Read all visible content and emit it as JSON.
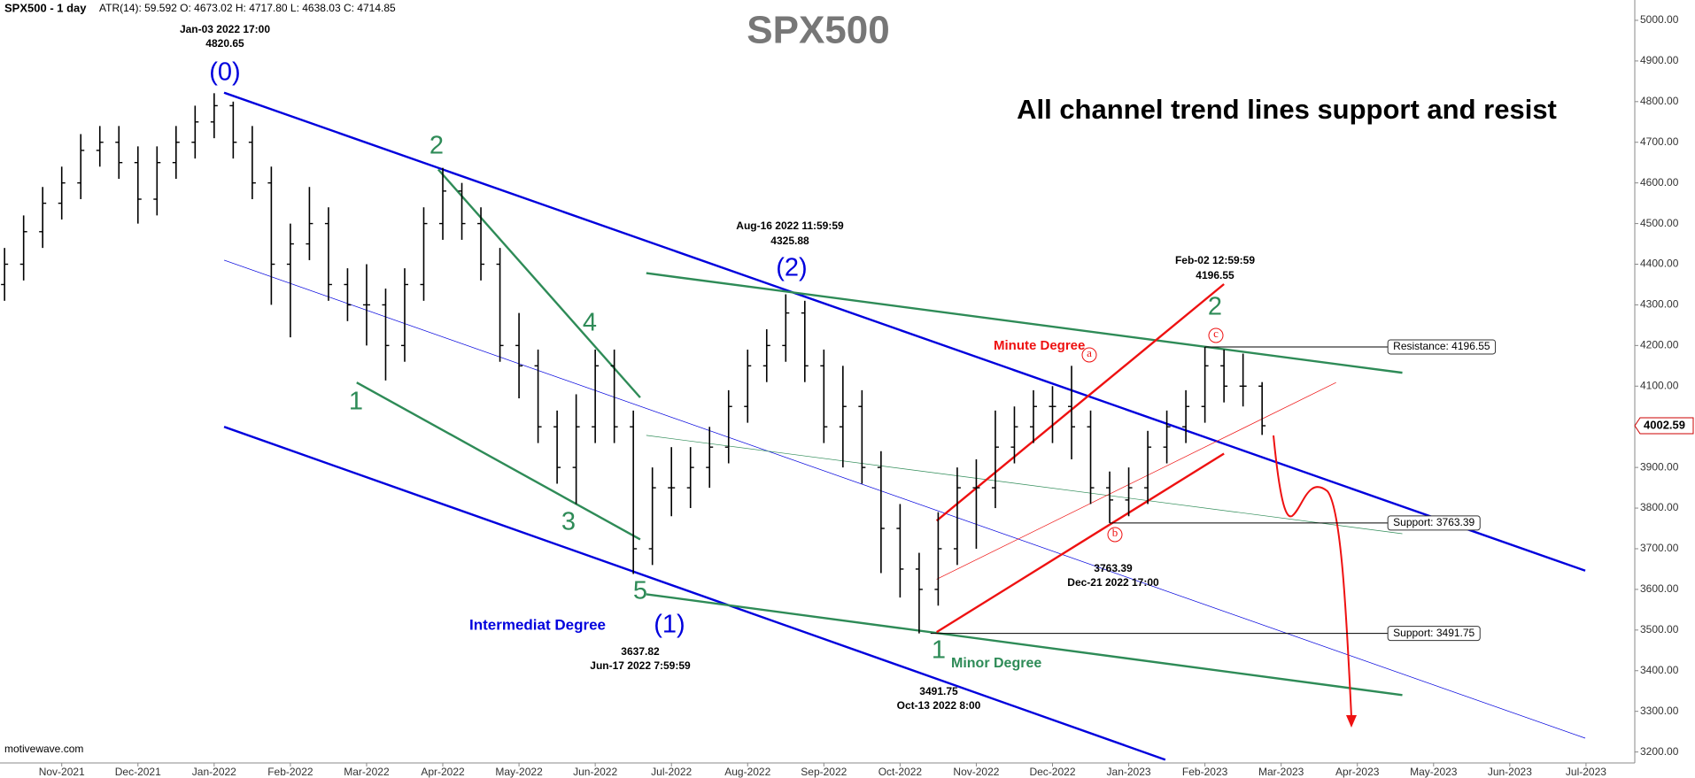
{
  "chart_data": {
    "type": "ohlc",
    "title": "SPX500",
    "subtitle": "All channel trend lines support and resist",
    "symbol": "SPX500 - 1 day",
    "stats": "ATR(14): 59.592  O: 4673.02  H: 4717.80  L: 4638.03  C: 4714.85",
    "source": "motivewave.com",
    "color": "#000000",
    "x": [
      -0.75,
      -0.5,
      -0.25,
      0,
      0.25,
      0.5,
      0.75,
      1,
      1.25,
      1.5,
      1.75,
      2,
      2.25,
      2.5,
      2.75,
      3,
      3.25,
      3.5,
      3.75,
      4,
      4.25,
      4.5,
      4.75,
      5,
      5.25,
      5.5,
      5.75,
      6,
      6.25,
      6.5,
      6.75,
      7,
      7.25,
      7.5,
      7.75,
      8,
      8.25,
      8.5,
      8.75,
      9,
      9.25,
      9.5,
      9.75,
      10,
      10.25,
      10.5,
      10.75,
      11,
      11.25,
      11.5,
      11.75,
      12,
      12.25,
      12.5,
      12.75,
      13,
      13.25,
      13.5,
      13.75,
      14,
      14.25,
      14.5,
      14.75,
      15,
      15.25,
      15.5,
      15.75
    ],
    "open": [
      4350,
      4400,
      4480,
      4550,
      4600,
      4680,
      4700,
      4650,
      4560,
      4650,
      4700,
      4750,
      4790,
      4700,
      4600,
      4400,
      4450,
      4500,
      4350,
      4300,
      4300,
      4200,
      4350,
      4500,
      4580,
      4500,
      4400,
      4200,
      4150,
      4000,
      3900,
      4000,
      4150,
      4000,
      3700,
      3850,
      3850,
      3900,
      3950,
      4050,
      4150,
      4200,
      4280,
      4150,
      4000,
      4050,
      3900,
      3750,
      3650,
      3600,
      3700,
      3850,
      3850,
      3950,
      4000,
      4050,
      4050,
      4000,
      3850,
      3820,
      3850,
      3950,
      4000,
      4050,
      4150,
      4100,
      4100
    ],
    "high": [
      4440,
      4520,
      4590,
      4640,
      4720,
      4740,
      4740,
      4690,
      4690,
      4740,
      4790,
      4820.65,
      4800,
      4740,
      4640,
      4500,
      4590,
      4540,
      4390,
      4400,
      4340,
      4390,
      4540,
      4637,
      4600,
      4540,
      4440,
      4280,
      4190,
      4040,
      4080,
      4190,
      4190,
      4040,
      3900,
      3950,
      3950,
      4000,
      4090,
      4190,
      4240,
      4325.88,
      4310,
      4190,
      4150,
      4090,
      3940,
      3810,
      3690,
      3790,
      3900,
      3920,
      4040,
      4050,
      4090,
      4100,
      4150,
      4040,
      3890,
      3900,
      3990,
      4040,
      4090,
      4196.55,
      4190,
      4180,
      4110
    ],
    "low": [
      4310,
      4360,
      4440,
      4510,
      4560,
      4640,
      4610,
      4500,
      4520,
      4610,
      4660,
      4710,
      4660,
      4560,
      4300,
      4220,
      4410,
      4310,
      4260,
      4200,
      4114,
      4160,
      4310,
      4460,
      4460,
      4360,
      4160,
      4070,
      3960,
      3860,
      3810,
      3960,
      3960,
      3637.82,
      3660,
      3780,
      3800,
      3850,
      3910,
      4010,
      4110,
      4160,
      4110,
      3960,
      3900,
      3860,
      3640,
      3580,
      3491.75,
      3560,
      3660,
      3700,
      3800,
      3910,
      3960,
      3960,
      3920,
      3810,
      3763.39,
      3780,
      3810,
      3910,
      3960,
      4010,
      4060,
      4050,
      3980
    ],
    "close": [
      4400,
      4480,
      4550,
      4600,
      4680,
      4700,
      4650,
      4560,
      4650,
      4700,
      4750,
      4790,
      4700,
      4600,
      4400,
      4450,
      4500,
      4350,
      4300,
      4300,
      4200,
      4350,
      4500,
      4580,
      4500,
      4400,
      4200,
      4150,
      4000,
      3900,
      4000,
      4150,
      4000,
      3700,
      3850,
      3850,
      3900,
      3950,
      4050,
      4150,
      4200,
      4280,
      4150,
      4000,
      4050,
      3900,
      3750,
      3650,
      3600,
      3700,
      3850,
      3850,
      3950,
      4000,
      4050,
      4050,
      4000,
      3850,
      3820,
      3850,
      3950,
      4000,
      4050,
      4150,
      4100,
      4100,
      4002.59
    ],
    "xlim": [
      -0.81,
      20.64
    ],
    "ylim": [
      3173,
      5050
    ],
    "xticks": [
      {
        "value": 0,
        "label": "Nov-2021"
      },
      {
        "value": 1,
        "label": "Dec-2021"
      },
      {
        "value": 2,
        "label": "Jan-2022"
      },
      {
        "value": 3,
        "label": "Feb-2022"
      },
      {
        "value": 4,
        "label": "Mar-2022"
      },
      {
        "value": 5,
        "label": "Apr-2022"
      },
      {
        "value": 6,
        "label": "May-2022"
      },
      {
        "value": 7,
        "label": "Jun-2022"
      },
      {
        "value": 8,
        "label": "Jul-2022"
      },
      {
        "value": 9,
        "label": "Aug-2022"
      },
      {
        "value": 10,
        "label": "Sep-2022"
      },
      {
        "value": 11,
        "label": "Oct-2022"
      },
      {
        "value": 12,
        "label": "Nov-2022"
      },
      {
        "value": 13,
        "label": "Dec-2022"
      },
      {
        "value": 14,
        "label": "Jan-2023"
      },
      {
        "value": 15,
        "label": "Feb-2023"
      },
      {
        "value": 16,
        "label": "Mar-2023"
      },
      {
        "value": 17,
        "label": "Apr-2023"
      },
      {
        "value": 18,
        "label": "May-2023"
      },
      {
        "value": 19,
        "label": "Jun-2023"
      },
      {
        "value": 20,
        "label": "Jul-2023"
      }
    ],
    "yticks": [
      {
        "value": 3200,
        "label": "3200.00"
      },
      {
        "value": 3300,
        "label": "3300.00"
      },
      {
        "value": 3400,
        "label": "3400.00"
      },
      {
        "value": 3500,
        "label": "3500.00"
      },
      {
        "value": 3600,
        "label": "3600.00"
      },
      {
        "value": 3700,
        "label": "3700.00"
      },
      {
        "value": 3800,
        "label": "3800.00"
      },
      {
        "value": 3900,
        "label": "3900.00"
      },
      {
        "value": 4000,
        "label": "4000.00"
      },
      {
        "value": 4100,
        "label": "4100.00"
      },
      {
        "value": 4200,
        "label": "4200.00"
      },
      {
        "value": 4300,
        "label": "4300.00"
      },
      {
        "value": 4400,
        "label": "4400.00"
      },
      {
        "value": 4500,
        "label": "4500.00"
      },
      {
        "value": 4600,
        "label": "4600.00"
      },
      {
        "value": 4700,
        "label": "4700.00"
      },
      {
        "value": 4800,
        "label": "4800.00"
      },
      {
        "value": 4900,
        "label": "4900.00"
      },
      {
        "value": 5000,
        "label": "5000.00"
      }
    ],
    "lines": [
      {
        "color": "#0000dd",
        "weight": "thick",
        "x": [
          2.13,
          19.99
        ],
        "y": [
          4822,
          3646
        ]
      },
      {
        "color": "#0000dd",
        "weight": "thick",
        "x": [
          2.13,
          14.48
        ],
        "y": [
          4000,
          3181
        ]
      },
      {
        "color": "#0000dd",
        "weight": "thin",
        "x": [
          2.13,
          19.99
        ],
        "y": [
          4410,
          3234
        ]
      },
      {
        "color": "#2e8b57",
        "weight": "thick",
        "x": [
          7.67,
          17.59
        ],
        "y": [
          4378,
          4133
        ]
      },
      {
        "color": "#2e8b57",
        "weight": "thick",
        "x": [
          7.67,
          17.59
        ],
        "y": [
          3588,
          3340
        ]
      },
      {
        "color": "#2e8b57",
        "weight": "thin",
        "x": [
          7.67,
          17.59
        ],
        "y": [
          3979,
          3737
        ]
      },
      {
        "color": "#2e8b57",
        "weight": "thick",
        "x": [
          3.87,
          7.59
        ],
        "y": [
          4109,
          3723
        ]
      },
      {
        "color": "#2e8b57",
        "weight": "thick",
        "x": [
          4.94,
          7.59
        ],
        "y": [
          4633,
          4072
        ]
      },
      {
        "color": "#ee1111",
        "weight": "thick",
        "x": [
          11.48,
          15.25
        ],
        "y": [
          3495,
          3934
        ]
      },
      {
        "color": "#ee1111",
        "weight": "thick",
        "x": [
          11.48,
          15.25
        ],
        "y": [
          3769,
          4351
        ]
      },
      {
        "color": "#ee1111",
        "weight": "thin",
        "x": [
          11.48,
          16.72
        ],
        "y": [
          3625,
          4109
        ]
      }
    ],
    "levels": [
      {
        "label": "Resistance: 4196.55",
        "value": 4196.55,
        "from": 15.0,
        "to": 17.4
      },
      {
        "label": "Support: 3763.39",
        "value": 3763.39,
        "from": 13.75,
        "to": 17.4
      },
      {
        "label": "Support: 3491.75",
        "value": 3491.75,
        "from": 11.4,
        "to": 17.4
      }
    ],
    "annotations": [
      {
        "text": "Jan-03 2022 17:00",
        "color": "#000000"
      },
      {
        "text": "(0)",
        "color": "#0000dd"
      },
      {
        "text": "2",
        "color": "#2e8b57"
      },
      {
        "text": "4",
        "color": "#2e8b57"
      },
      {
        "text": "1",
        "color": "#2e8b57"
      },
      {
        "text": "3",
        "color": "#2e8b57"
      },
      {
        "text": "5",
        "color": "#2e8b57"
      },
      {
        "text": "Intermediat Degree",
        "color": "#0000dd"
      },
      {
        "text": "(1)",
        "color": "#0000dd"
      },
      {
        "text": "Jun-17 2022 7:59:59",
        "color": "#000000"
      },
      {
        "text": "Aug-16 2022 11:59:59",
        "color": "#000000"
      },
      {
        "text": "(2)",
        "color": "#0000dd"
      },
      {
        "text": "1",
        "color": "#2e8b57"
      },
      {
        "text": "Minor Degree",
        "color": "#2e8b57"
      },
      {
        "text": "Oct-13 2022 8:00",
        "color": "#000000"
      },
      {
        "text": "Minute Degree",
        "color": "#ee1111"
      },
      {
        "text": "a",
        "color": "#ee1111"
      },
      {
        "text": "b",
        "color": "#ee1111"
      },
      {
        "text": "c",
        "color": "#ee1111"
      },
      {
        "text": "Dec-21 2022 17:00",
        "color": "#000000"
      },
      {
        "text": "Feb-02 12:59:59",
        "color": "#000000"
      },
      {
        "text": "2",
        "color": "#2e8b57"
      }
    ]
  }
}
